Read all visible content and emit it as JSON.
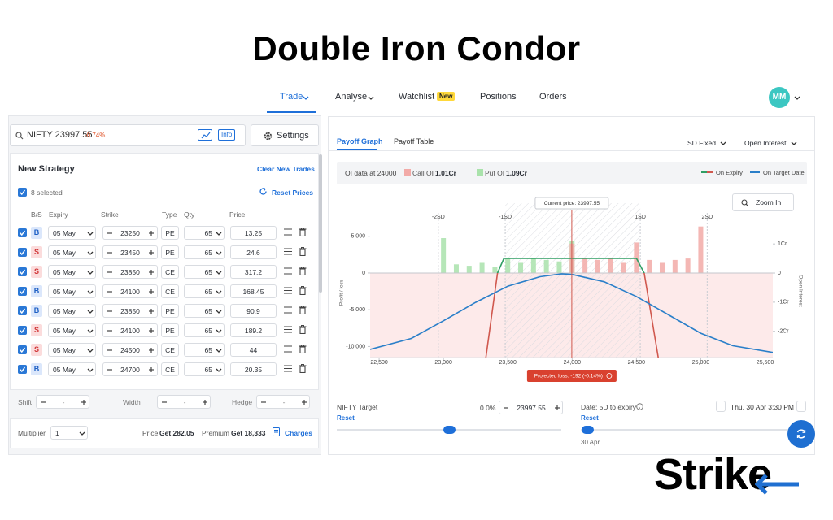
{
  "title": "Double Iron Condor",
  "nav": {
    "items": [
      "Trade",
      "Analyse",
      "Watchlist",
      "Positions",
      "Orders"
    ],
    "badge": "New",
    "avatar": "MM"
  },
  "strategy": {
    "symbol": "NIFTY 23997.55",
    "change": "-0.74%",
    "info": "Info",
    "settings": "Settings",
    "heading": "New Strategy",
    "clear": "Clear New Trades",
    "selected": "8 selected",
    "reset_prices": "Reset Prices",
    "columns": [
      "B/S",
      "Expiry",
      "Strike",
      "Type",
      "Qty",
      "Price"
    ],
    "rows": [
      [
        "B",
        "05 May",
        "23250",
        "PE",
        "65",
        "13.25"
      ],
      [
        "S",
        "05 May",
        "23450",
        "PE",
        "65",
        "24.6"
      ],
      [
        "S",
        "05 May",
        "23850",
        "CE",
        "65",
        "317.2"
      ],
      [
        "B",
        "05 May",
        "24100",
        "CE",
        "65",
        "168.45"
      ],
      [
        "B",
        "05 May",
        "23850",
        "PE",
        "65",
        "90.9"
      ],
      [
        "S",
        "05 May",
        "24100",
        "PE",
        "65",
        "189.2"
      ],
      [
        "S",
        "05 May",
        "24500",
        "CE",
        "65",
        "44"
      ],
      [
        "B",
        "05 May",
        "24700",
        "CE",
        "65",
        "20.35"
      ]
    ],
    "adjusters": [
      {
        "label": "Shift",
        "value": "-"
      },
      {
        "label": "Width",
        "value": "-"
      },
      {
        "label": "Hedge",
        "value": "-"
      }
    ],
    "multiplier_label": "Multiplier",
    "multiplier": "1",
    "price_label": "Price",
    "price": "Get 282.05",
    "premium_label": "Premium",
    "premium": "Get 18,333",
    "charges": "Charges"
  },
  "payoff": {
    "tabs": [
      "Payoff Graph",
      "Payoff Table"
    ],
    "sd_mode": "SD Fixed",
    "overlay": "Open Interest",
    "oi_at": "OI data at 24000",
    "call_oi": "1.01Cr",
    "put_oi": "1.09Cr",
    "zoom": "Zoom In",
    "target_label": "NIFTY Target",
    "target_reset": "Reset",
    "target_change": "0.0%",
    "target_value": "23997.55",
    "date_label": "Date: 5D to expiry",
    "date_value": "Thu, 30 Apr 3:30 PM",
    "date_reset": "Reset",
    "date_start": "30 Apr"
  },
  "chart_data": {
    "type": "line",
    "ylabel": "Profit / loss",
    "y2label": "Open Interest",
    "xlim": [
      22430,
      25560
    ],
    "ylim": [
      -11500,
      9500
    ],
    "y2lim": [
      -2.9,
      2.4
    ],
    "xticks": [
      {
        "value": 22500,
        "label": "22,500"
      },
      {
        "value": 23000,
        "label": "23,000"
      },
      {
        "value": 23500,
        "label": "23,500"
      },
      {
        "value": 24000,
        "label": "24,000"
      },
      {
        "value": 24500,
        "label": "24,500"
      },
      {
        "value": 25000,
        "label": "25,000"
      },
      {
        "value": 25500,
        "label": "25,500"
      }
    ],
    "yticks": [
      {
        "value": -10000,
        "label": "-10,000"
      },
      {
        "value": -5000,
        "label": "-5,000"
      },
      0,
      {
        "value": 5000,
        "label": "5,000"
      }
    ],
    "y2ticks": [
      {
        "value": 1,
        "label": "1Cr"
      },
      0,
      {
        "value": -1,
        "label": "-1Cr"
      },
      {
        "value": -2,
        "label": "-2Cr"
      }
    ],
    "sd_lines": [
      {
        "value": 22960,
        "label": "-2SD"
      },
      {
        "value": 23480,
        "label": "-1SD"
      },
      {
        "value": 24530,
        "label": "1SD"
      },
      {
        "value": 25050,
        "label": "2SD"
      }
    ],
    "current_price": 23997.55,
    "current_price_label": "Current price: 23997.55",
    "projected_label": "Projected loss: -192 (-0.14%)",
    "series": [
      {
        "name": "On Expiry",
        "color": "#2f9e63",
        "loss_color": "#d0584e",
        "x": [
          23330,
          23420,
          23470,
          24500,
          24560,
          24670
        ],
        "values": [
          -11500,
          0,
          2000,
          2000,
          0,
          -11500
        ]
      },
      {
        "name": "On Target Date",
        "color": "#2a7fc9",
        "x": [
          22430,
          22750,
          23000,
          23250,
          23500,
          23750,
          23920,
          24000,
          24250,
          24500,
          24750,
          25000,
          25250,
          25560
        ],
        "values": [
          -10400,
          -8900,
          -6500,
          -4000,
          -1800,
          -500,
          -100,
          -192,
          -1200,
          -3200,
          -5700,
          -8200,
          -9900,
          -10800
        ]
      },
      {
        "name": "Put OI",
        "type": "bar",
        "axis": "y2",
        "color": "#a9e2ab",
        "x": [
          23000,
          23100,
          23200,
          23300,
          23400,
          23500,
          23600,
          23700,
          23800,
          23900,
          24000
        ],
        "values": [
          1.2,
          0.3,
          0.25,
          0.35,
          0.2,
          0.5,
          0.35,
          0.5,
          0.45,
          0.4,
          1.09
        ]
      },
      {
        "name": "Call OI",
        "type": "bar",
        "axis": "y2",
        "color": "#f2aaa7",
        "x": [
          24000,
          24100,
          24200,
          24300,
          24400,
          24500,
          24600,
          24700,
          24800,
          24900,
          25000
        ],
        "values": [
          1.01,
          0.5,
          0.45,
          0.5,
          0.35,
          1.05,
          0.45,
          0.35,
          0.45,
          0.5,
          1.6
        ]
      }
    ]
  },
  "brand": "Strike"
}
